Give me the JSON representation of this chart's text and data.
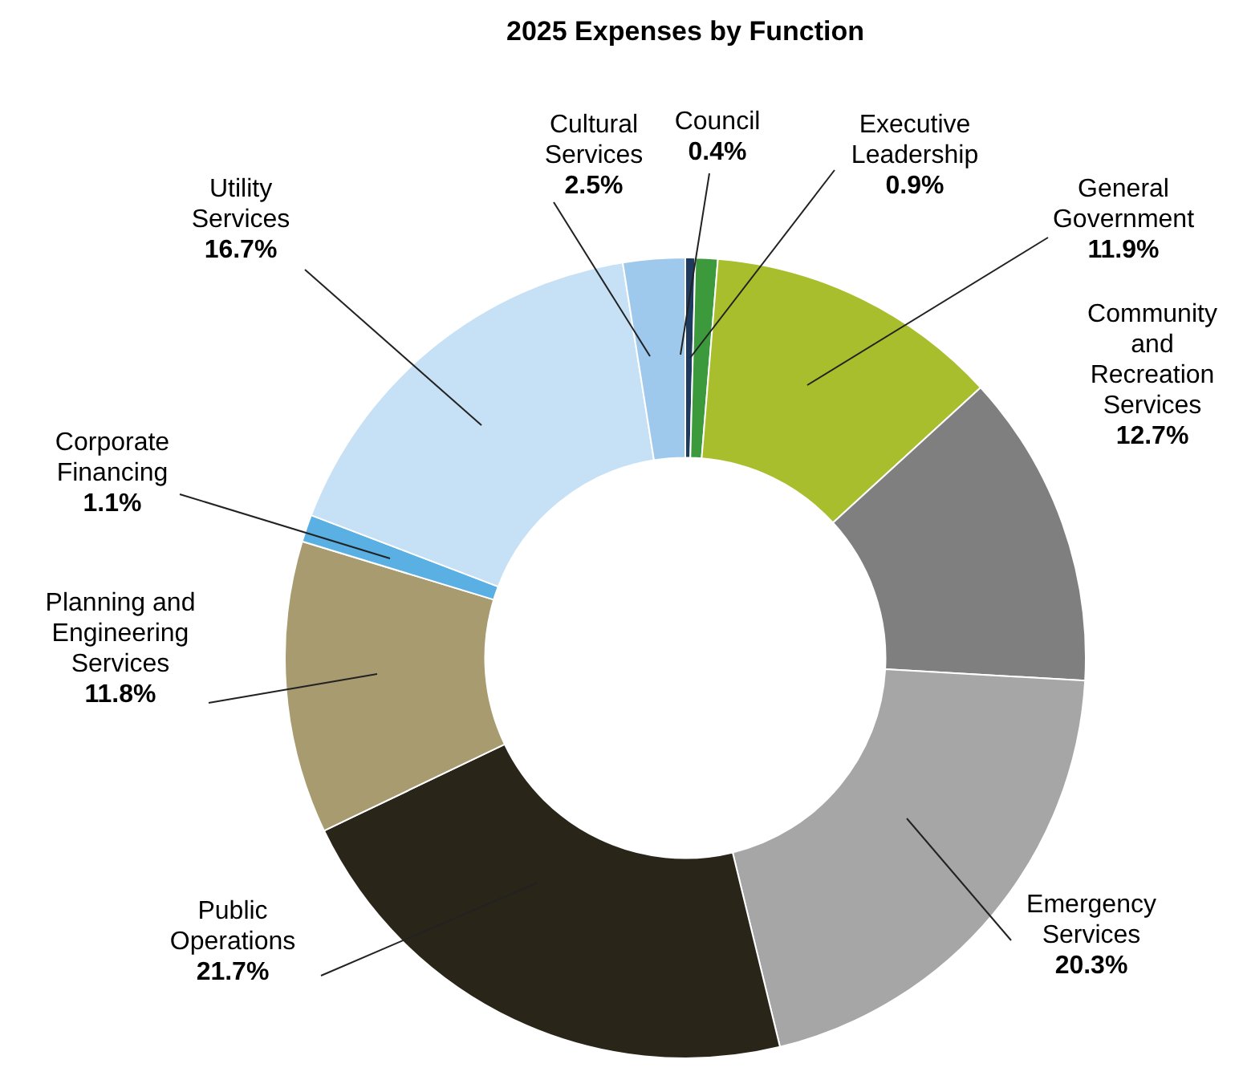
{
  "chart_data": {
    "type": "donut",
    "title": "2025 Expenses by Function",
    "categories": [
      "Council",
      "Executive Leadership",
      "General Government",
      "Community and Recreation Services",
      "Emergency Services",
      "Public Operations",
      "Planning and Engineering Services",
      "Corporate Financing",
      "Utility Services",
      "Cultural Services"
    ],
    "values": [
      0.4,
      0.9,
      11.9,
      12.7,
      20.3,
      21.7,
      11.8,
      1.1,
      16.7,
      2.5
    ],
    "colors": [
      "#1f3a5f",
      "#3c9a3c",
      "#a9be2c",
      "#7f7f7f",
      "#a6a6a6",
      "#2a2519",
      "#a89b70",
      "#5aafe3",
      "#c6e1f5",
      "#9ec9ec"
    ],
    "value_labels": [
      "0.4%",
      "0.9%",
      "11.9%",
      "12.7%",
      "20.3%",
      "21.7%",
      "11.8%",
      "1.1%",
      "16.7%",
      "2.5%"
    ],
    "legend": false
  }
}
